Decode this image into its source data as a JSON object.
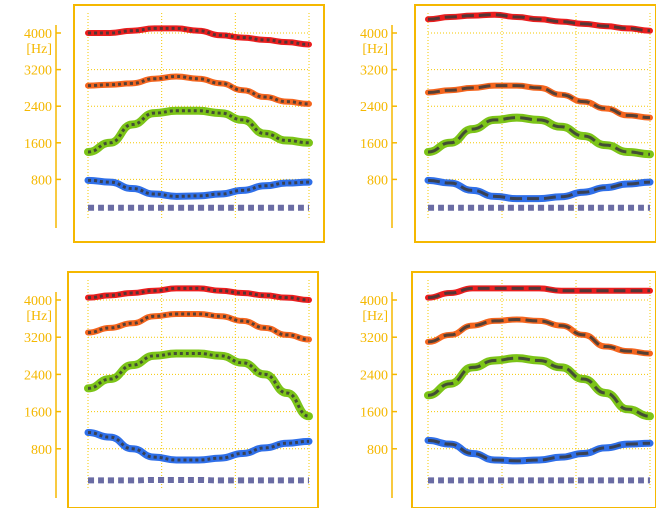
{
  "figure": {
    "unit_label": "[Hz]",
    "colors": {
      "frame": "#f5b800",
      "tick_text": "#f5b800",
      "grid": "#f5c800",
      "f1": "#2f6fe8",
      "f2": "#7cc418",
      "f3": "#f4651e",
      "f4": "#ea1e1e",
      "f0": "#6a6ca4",
      "reference": "#3a3a3a"
    }
  },
  "chart_data": [
    {
      "type": "line",
      "ylim": [
        0,
        4800
      ],
      "yticks": [
        800,
        1600,
        2400,
        3200,
        4000
      ],
      "ylabel": "[Hz]",
      "grid": true,
      "x": [
        0,
        0.1,
        0.2,
        0.3,
        0.4,
        0.5,
        0.6,
        0.7,
        0.8,
        0.9,
        1.0
      ],
      "series": [
        {
          "role": "f4",
          "values": [
            4000,
            4000,
            4050,
            4100,
            4100,
            4050,
            3950,
            3900,
            3850,
            3800,
            3750
          ]
        },
        {
          "role": "f3",
          "values": [
            2850,
            2870,
            2900,
            3000,
            3050,
            3000,
            2900,
            2750,
            2600,
            2500,
            2450
          ]
        },
        {
          "role": "f2",
          "values": [
            1400,
            1600,
            2000,
            2250,
            2300,
            2300,
            2250,
            2100,
            1800,
            1650,
            1600
          ]
        },
        {
          "role": "f1",
          "values": [
            780,
            740,
            600,
            480,
            430,
            440,
            480,
            560,
            660,
            720,
            740
          ]
        },
        {
          "role": "f0",
          "values": [
            180,
            180,
            180,
            180,
            180,
            180,
            180,
            180,
            180,
            180,
            180
          ]
        }
      ]
    },
    {
      "type": "line",
      "ylim": [
        0,
        4800
      ],
      "yticks": [
        800,
        1600,
        2400,
        3200,
        4000
      ],
      "ylabel": "[Hz]",
      "grid": true,
      "x": [
        0,
        0.1,
        0.2,
        0.3,
        0.4,
        0.5,
        0.6,
        0.7,
        0.8,
        0.9,
        1.0
      ],
      "series": [
        {
          "role": "f4",
          "values": [
            4300,
            4350,
            4380,
            4400,
            4350,
            4300,
            4250,
            4200,
            4150,
            4100,
            4050
          ]
        },
        {
          "role": "f3",
          "values": [
            2700,
            2750,
            2800,
            2850,
            2850,
            2800,
            2650,
            2500,
            2350,
            2200,
            2150
          ]
        },
        {
          "role": "f2",
          "values": [
            1400,
            1600,
            1900,
            2100,
            2150,
            2100,
            1950,
            1750,
            1550,
            1400,
            1350
          ]
        },
        {
          "role": "f1",
          "values": [
            780,
            720,
            560,
            430,
            380,
            380,
            420,
            520,
            620,
            700,
            740
          ]
        },
        {
          "role": "f0",
          "values": [
            180,
            180,
            180,
            180,
            180,
            180,
            180,
            180,
            180,
            180,
            180
          ]
        }
      ]
    },
    {
      "type": "line",
      "ylim": [
        0,
        4800
      ],
      "yticks": [
        800,
        1600,
        2400,
        3200,
        4000
      ],
      "ylabel": "[Hz]",
      "grid": true,
      "x": [
        0,
        0.1,
        0.2,
        0.3,
        0.4,
        0.5,
        0.6,
        0.7,
        0.8,
        0.9,
        1.0
      ],
      "series": [
        {
          "role": "f4",
          "values": [
            4050,
            4100,
            4150,
            4200,
            4250,
            4250,
            4200,
            4150,
            4100,
            4050,
            4000
          ]
        },
        {
          "role": "f3",
          "values": [
            3300,
            3400,
            3500,
            3650,
            3700,
            3700,
            3650,
            3550,
            3400,
            3250,
            3150
          ]
        },
        {
          "role": "f2",
          "values": [
            2100,
            2300,
            2600,
            2800,
            2850,
            2850,
            2800,
            2650,
            2400,
            2000,
            1500
          ]
        },
        {
          "role": "f1",
          "values": [
            1150,
            1050,
            800,
            620,
            560,
            560,
            600,
            700,
            820,
            920,
            960
          ]
        },
        {
          "role": "f0",
          "values": [
            120,
            120,
            120,
            130,
            130,
            130,
            120,
            120,
            120,
            120,
            120
          ]
        }
      ]
    },
    {
      "type": "line",
      "ylim": [
        0,
        4800
      ],
      "yticks": [
        800,
        1600,
        2400,
        3200,
        4000
      ],
      "ylabel": "[Hz]",
      "grid": true,
      "x": [
        0,
        0.1,
        0.2,
        0.3,
        0.4,
        0.5,
        0.6,
        0.7,
        0.8,
        0.9,
        1.0
      ],
      "series": [
        {
          "role": "f4",
          "values": [
            4050,
            4150,
            4250,
            4250,
            4250,
            4250,
            4200,
            4200,
            4200,
            4200,
            4200
          ]
        },
        {
          "role": "f3",
          "values": [
            3100,
            3250,
            3450,
            3550,
            3580,
            3550,
            3450,
            3250,
            3000,
            2900,
            2850
          ]
        },
        {
          "role": "f2",
          "values": [
            1950,
            2200,
            2550,
            2700,
            2750,
            2700,
            2550,
            2300,
            2000,
            1650,
            1500
          ]
        },
        {
          "role": "f1",
          "values": [
            980,
            900,
            700,
            560,
            540,
            560,
            620,
            700,
            820,
            900,
            920
          ]
        },
        {
          "role": "f0",
          "values": [
            120,
            120,
            120,
            120,
            120,
            120,
            120,
            120,
            120,
            120,
            120
          ]
        }
      ]
    }
  ]
}
